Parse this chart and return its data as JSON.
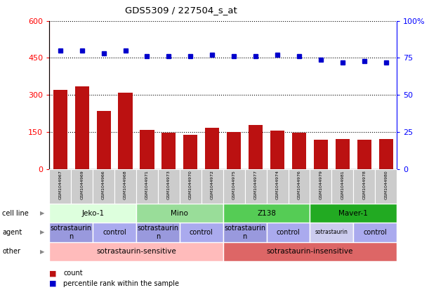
{
  "title": "GDS5309 / 227504_s_at",
  "samples": [
    "GSM1044967",
    "GSM1044969",
    "GSM1044966",
    "GSM1044968",
    "GSM1044971",
    "GSM1044973",
    "GSM1044970",
    "GSM1044972",
    "GSM1044975",
    "GSM1044977",
    "GSM1044974",
    "GSM1044976",
    "GSM1044979",
    "GSM1044981",
    "GSM1044978",
    "GSM1044980"
  ],
  "counts": [
    320,
    335,
    235,
    310,
    160,
    148,
    140,
    168,
    152,
    178,
    155,
    148,
    120,
    122,
    120,
    122
  ],
  "percentiles": [
    80,
    80,
    78,
    80,
    76,
    76,
    76,
    77,
    76,
    76,
    77,
    76,
    74,
    72,
    73,
    72
  ],
  "bar_color": "#bb1111",
  "dot_color": "#0000cc",
  "ylim_left": [
    0,
    600
  ],
  "ylim_right": [
    0,
    100
  ],
  "yticks_left": [
    0,
    150,
    300,
    450,
    600
  ],
  "yticks_right": [
    0,
    25,
    50,
    75,
    100
  ],
  "cell_line_groups": [
    {
      "label": "Jeko-1",
      "start": 0,
      "end": 4,
      "color": "#ddffdd"
    },
    {
      "label": "Mino",
      "start": 4,
      "end": 8,
      "color": "#99dd99"
    },
    {
      "label": "Z138",
      "start": 8,
      "end": 12,
      "color": "#55cc55"
    },
    {
      "label": "Maver-1",
      "start": 12,
      "end": 16,
      "color": "#22aa22"
    }
  ],
  "agent_groups": [
    {
      "label": "sotrastaurin\nn",
      "start": 0,
      "end": 2,
      "color": "#9999dd",
      "fontsize": 7
    },
    {
      "label": "control",
      "start": 2,
      "end": 4,
      "color": "#aaaaee",
      "fontsize": 7
    },
    {
      "label": "sotrastaurin\nn",
      "start": 4,
      "end": 6,
      "color": "#9999dd",
      "fontsize": 7
    },
    {
      "label": "control",
      "start": 6,
      "end": 8,
      "color": "#aaaaee",
      "fontsize": 7
    },
    {
      "label": "sotrastaurin\nn",
      "start": 8,
      "end": 10,
      "color": "#9999dd",
      "fontsize": 7
    },
    {
      "label": "control",
      "start": 10,
      "end": 12,
      "color": "#aaaaee",
      "fontsize": 7
    },
    {
      "label": "sotrastaurin",
      "start": 12,
      "end": 14,
      "color": "#ccccee",
      "fontsize": 5.5
    },
    {
      "label": "control",
      "start": 14,
      "end": 16,
      "color": "#aaaaee",
      "fontsize": 7
    }
  ],
  "other_groups": [
    {
      "label": "sotrastaurin-sensitive",
      "start": 0,
      "end": 8,
      "color": "#ffbbbb"
    },
    {
      "label": "sotrastaurin-insensitive",
      "start": 8,
      "end": 16,
      "color": "#dd6666"
    }
  ],
  "row_labels": [
    "cell line",
    "agent",
    "other"
  ],
  "legend_count_color": "#bb1111",
  "legend_dot_color": "#0000cc"
}
